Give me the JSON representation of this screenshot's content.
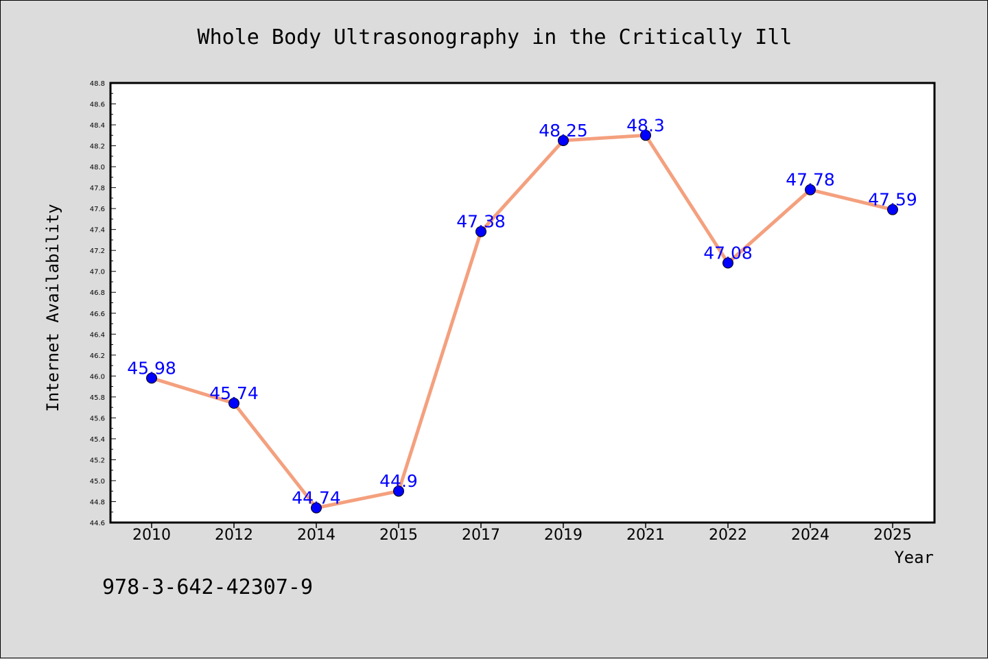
{
  "chart_data": {
    "type": "line",
    "title": "Whole Body Ultrasonography in the Critically Ill",
    "xlabel": "Year",
    "ylabel": "Internet Availability",
    "categories": [
      "2010",
      "2012",
      "2014",
      "2015",
      "2017",
      "2019",
      "2021",
      "2022",
      "2024",
      "2025"
    ],
    "series": [
      {
        "values": [
          45.98,
          45.74,
          44.74,
          44.9,
          47.38,
          48.25,
          48.3,
          47.08,
          47.78,
          47.59
        ],
        "data_labels": [
          "45.98",
          "45.74",
          "44.74",
          "44.9",
          "47.38",
          "48.25",
          "48.3",
          "47.08",
          "47.78",
          "47.59"
        ]
      }
    ],
    "ylim": [
      44.6,
      48.8
    ],
    "yticks": [
      "44.6",
      "44.8",
      "45.0",
      "45.2",
      "45.4",
      "45.6",
      "45.8",
      "46.0",
      "46.2",
      "46.4",
      "46.6",
      "46.8",
      "47.0",
      "47.2",
      "47.4",
      "47.6",
      "47.8",
      "48.0",
      "48.2",
      "48.4",
      "48.6",
      "48.8"
    ],
    "grid": false,
    "legend": "none",
    "colors": {
      "line": "#f4a07e",
      "marker": "#0000ff",
      "data_label": "#0000ff",
      "background": "#dcdcdc",
      "plot_background": "#ffffff"
    }
  },
  "footer": {
    "isbn": "978-3-642-42307-9"
  }
}
